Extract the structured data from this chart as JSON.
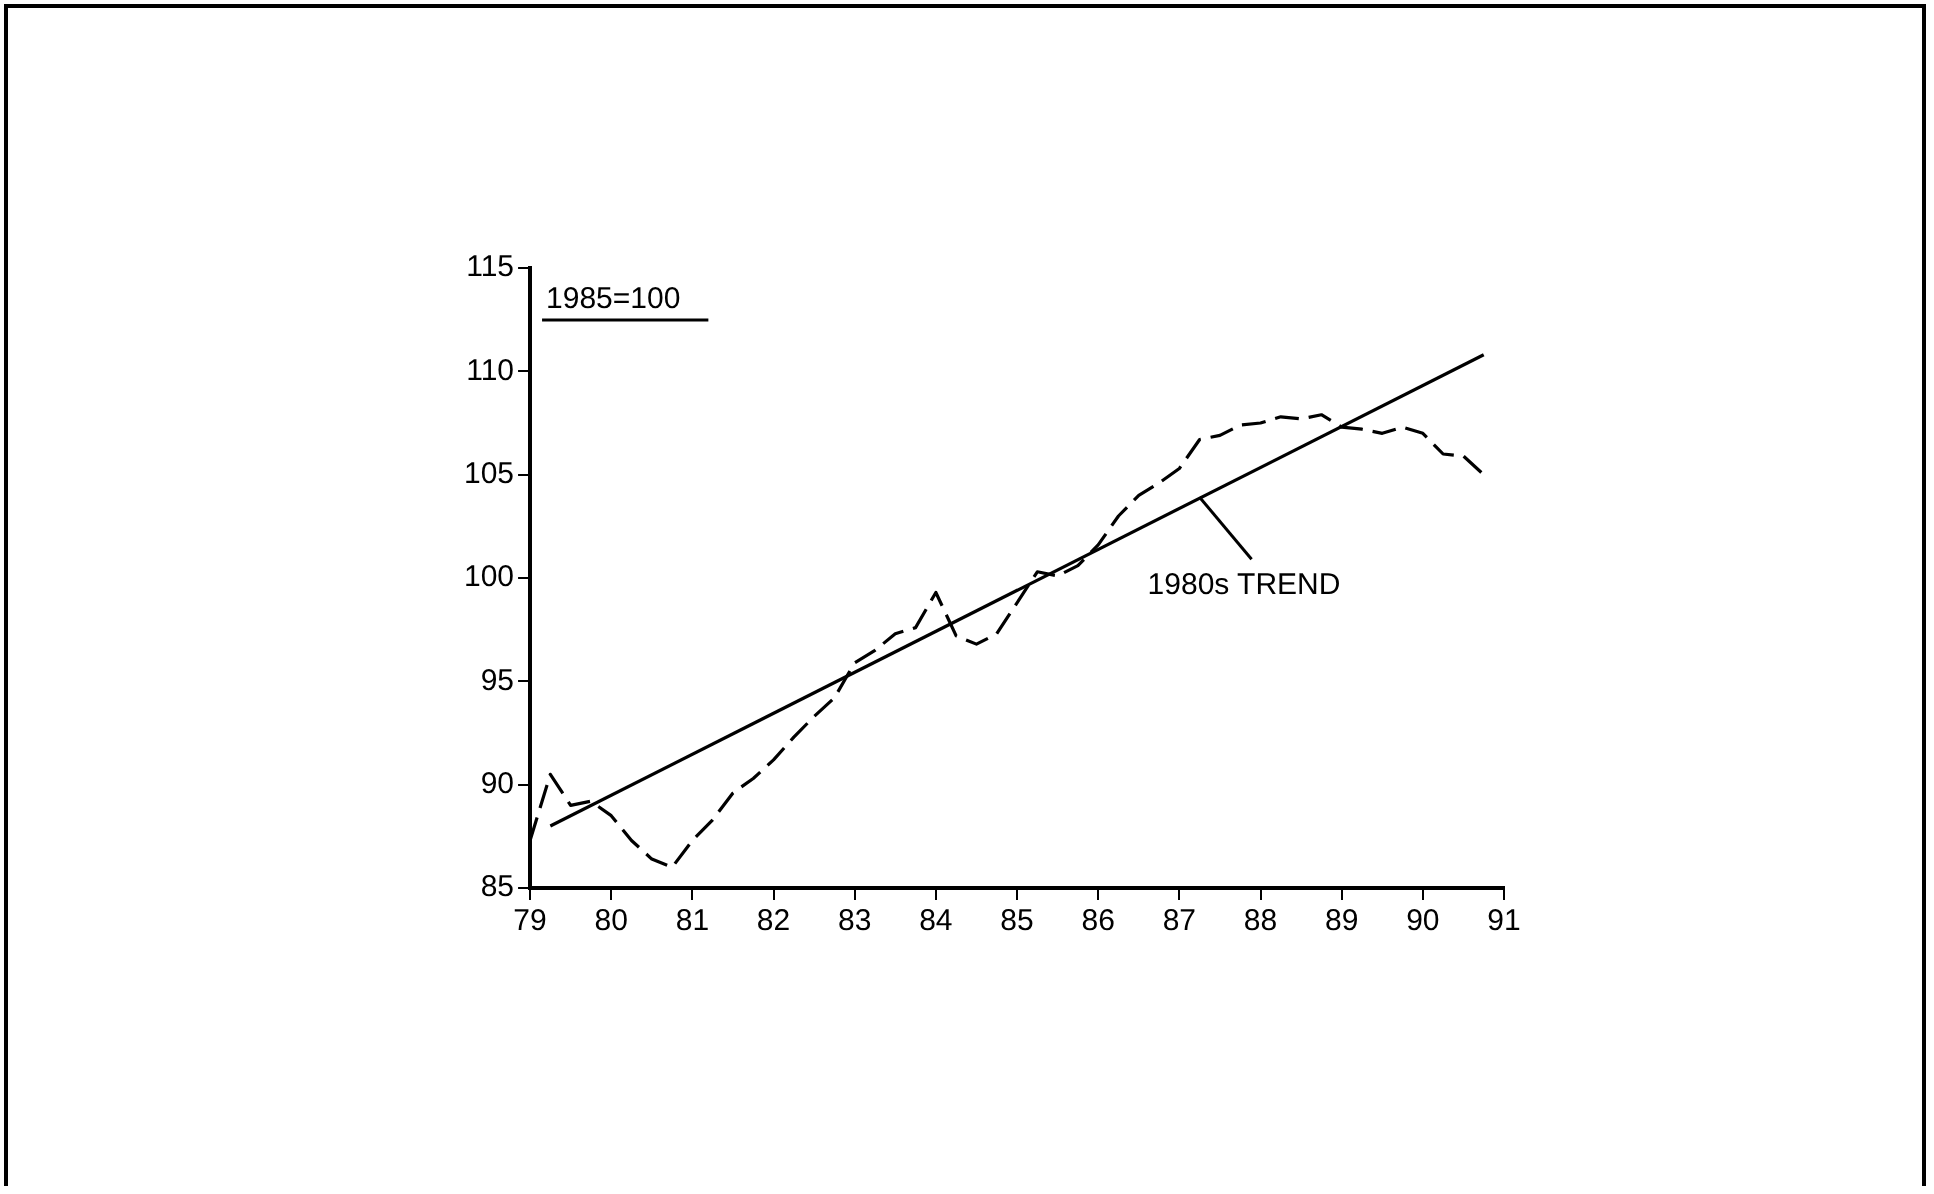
{
  "chart_data": {
    "type": "line",
    "annotations": [
      "1985=100",
      {
        "text": "1980s TREND",
        "x": 87.2,
        "y": 104.2
      }
    ],
    "xlim": [
      79,
      91
    ],
    "xticks": [
      79,
      80,
      81,
      82,
      83,
      84,
      85,
      86,
      87,
      88,
      89,
      90,
      91
    ],
    "ylim": [
      85,
      115
    ],
    "yticks": [
      85,
      90,
      95,
      100,
      105,
      110,
      115
    ],
    "grid": false,
    "legend": false,
    "marker": "none",
    "series": [
      {
        "color": "#000000",
        "line_style": "dashed",
        "x": [
          79,
          79.25,
          79.5,
          79.75,
          80,
          80.25,
          80.5,
          80.75,
          81,
          81.25,
          81.5,
          81.75,
          82,
          82.25,
          82.5,
          82.75,
          83,
          83.25,
          83.5,
          83.75,
          84,
          84.25,
          84.5,
          84.75,
          85,
          85.25,
          85.5,
          85.75,
          86,
          86.25,
          86.5,
          86.75,
          87,
          87.25,
          87.5,
          87.75,
          88,
          88.25,
          88.5,
          88.75,
          89,
          89.25,
          89.5,
          89.75,
          90,
          90.25,
          90.5,
          90.75
        ],
        "values": [
          87.3,
          90.5,
          89,
          89.2,
          88.5,
          87.3,
          86.4,
          86,
          87.3,
          88.3,
          89.6,
          90.3,
          91.2,
          92.3,
          93.3,
          94.2,
          95.9,
          96.5,
          97.3,
          97.6,
          99.3,
          97.2,
          96.8,
          97.3,
          98.8,
          100.3,
          100.1,
          100.6,
          101.6,
          103,
          104,
          104.6,
          105.3,
          106.7,
          106.9,
          107.4,
          107.5,
          107.8,
          107.7,
          107.9,
          107.3,
          107.2,
          107,
          107.3,
          107,
          106,
          105.9,
          105
        ]
      },
      {
        "color": "#000000",
        "line_style": "solid",
        "x": [
          79.25,
          90.75
        ],
        "values": [
          88,
          110.8
        ]
      }
    ]
  }
}
